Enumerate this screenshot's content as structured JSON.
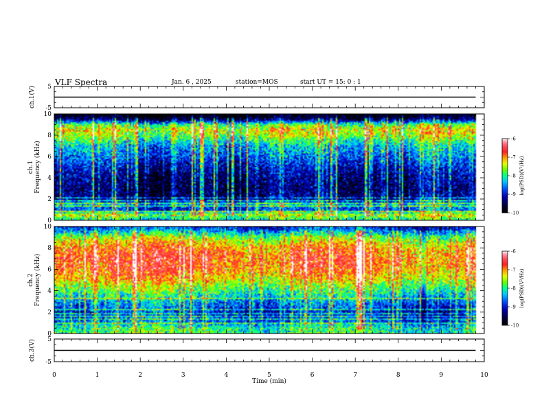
{
  "header": {
    "title": "VLF Spectra",
    "date": "Jan. 6 , 2025",
    "station": "station=MOS",
    "start": "start UT =  15: 0 : 1"
  },
  "colors": {
    "spectrum_scale": [
      "#000000",
      "#00003c",
      "#0000b4",
      "#0050ff",
      "#00c8ff",
      "#00ff96",
      "#64ff00",
      "#e6ff00",
      "#ffa000",
      "#ff2020",
      "#ff5060",
      "#ff9aa6",
      "#ffffff"
    ]
  },
  "chart_data": [
    {
      "type": "line",
      "name": "ch1-waveform",
      "ylabel": "ch.1(V)",
      "ylim": [
        -5,
        5
      ],
      "yticks": [
        "5",
        "-5"
      ],
      "xlim": [
        0,
        10
      ],
      "x": [
        0,
        9.8
      ],
      "y": [
        0,
        0
      ],
      "trace_end_min": 9.8
    },
    {
      "type": "heatmap",
      "name": "ch1-spectrogram",
      "title": "ch.1",
      "ylabel": "Frequency (kHz)",
      "ylim": [
        0,
        10
      ],
      "yticks": [
        "0",
        "2",
        "4",
        "6",
        "8",
        "10"
      ],
      "xlim": [
        0,
        10
      ],
      "trace_end_min": 9.8,
      "colorbar": {
        "label": "log(PSD)(V²/Hz)",
        "range": [
          -10,
          -6
        ],
        "ticks": [
          "-6",
          "-7",
          "-8",
          "-9",
          "-10"
        ]
      },
      "profile": {
        "freq_khz": [
          0,
          0.5,
          1,
          1.5,
          2,
          3,
          4,
          5,
          6,
          7,
          8,
          8.5,
          9,
          9.5,
          10
        ],
        "level": [
          -8.2,
          -7.5,
          -8.9,
          -8.5,
          -9.4,
          -9.5,
          -9.4,
          -9.1,
          -8.7,
          -8.4,
          -7.6,
          -7.4,
          -7.9,
          -9.6,
          -10
        ]
      },
      "hlines_khz": [
        0.8,
        1.3,
        1.6,
        1.8,
        2.1
      ]
    },
    {
      "type": "heatmap",
      "name": "ch2-spectrogram",
      "title": "ch.2",
      "ylabel": "Frequency (kHz)",
      "ylim": [
        0,
        10
      ],
      "yticks": [
        "0",
        "2",
        "4",
        "6",
        "8",
        "10"
      ],
      "xlim": [
        0,
        10
      ],
      "trace_end_min": 9.8,
      "colorbar": {
        "label": "log(PSD)(V²/Hz)",
        "range": [
          -10,
          -6
        ],
        "ticks": [
          "-6",
          "-7",
          "-8",
          "-9",
          "-10"
        ]
      },
      "profile": {
        "freq_khz": [
          0,
          0.5,
          1,
          1.5,
          2,
          3,
          4,
          5,
          6,
          7,
          8,
          8.5,
          9,
          9.5,
          10
        ],
        "level": [
          -7.9,
          -8.0,
          -8.6,
          -8.9,
          -9.0,
          -8.5,
          -7.9,
          -7.3,
          -6.9,
          -6.8,
          -7.0,
          -7.3,
          -7.7,
          -8.4,
          -9.0
        ]
      },
      "hlines_khz": [
        1.0,
        1.4,
        1.6,
        1.9,
        2.3,
        3.3
      ]
    },
    {
      "type": "line",
      "name": "ch3-waveform",
      "ylabel": "ch.3(V)",
      "ylim": [
        -5,
        5
      ],
      "yticks": [
        "5",
        "-5"
      ],
      "xlim": [
        0,
        10
      ],
      "x": [
        0,
        9.8
      ],
      "y": [
        0,
        0
      ],
      "trace_end_min": 9.8
    }
  ],
  "xaxis": {
    "label": "Time (min)",
    "ticks": [
      "0",
      "1",
      "2",
      "3",
      "4",
      "5",
      "6",
      "7",
      "8",
      "9",
      "10"
    ]
  }
}
